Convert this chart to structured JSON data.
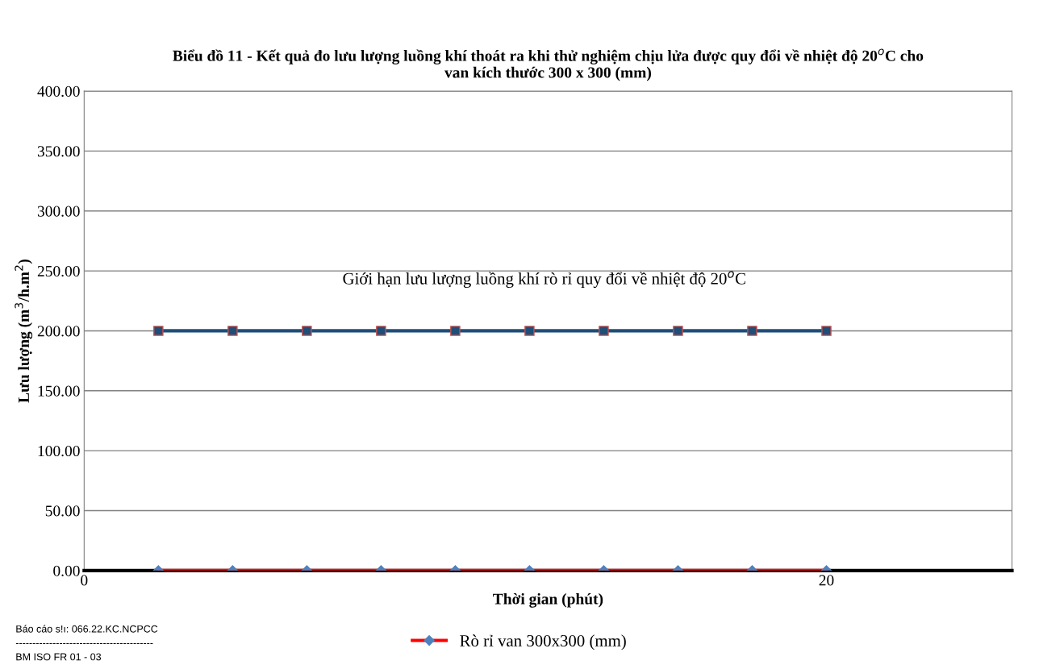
{
  "chart_data": {
    "type": "line",
    "title": "Biểu đồ 11 - Kết quả đo lưu lượng luồng khí thoát ra khi thử nghiệm chịu lửa được quy đổi về nhiệt độ 20$^{o}$C cho\nvan kích thước 300 x 300 (mm)",
    "xlabel": "Thời gian (phút)",
    "ylabel": "Lưu lượng (m$^{3}$/h.m$^{2}$)",
    "x": [
      2,
      4,
      6,
      8,
      10,
      12,
      14,
      16,
      18,
      20
    ],
    "series": [
      {
        "name": "Rò rỉ van 300x300 (mm)",
        "color": "#ff0000",
        "marker": "diamond",
        "values": [
          0,
          0,
          0,
          0,
          0,
          0,
          0,
          0,
          0,
          0
        ]
      },
      {
        "color": "#1f4e79",
        "marker": "square",
        "values": [
          200,
          200,
          200,
          200,
          200,
          200,
          200,
          200,
          200,
          200
        ]
      }
    ],
    "xlim": [
      0,
      25
    ],
    "xticks": [
      0,
      20
    ],
    "ylim": [
      0,
      400
    ],
    "yticks": [
      {
        "value": 0,
        "label": "0.00"
      },
      {
        "value": 50,
        "label": "50.00"
      },
      {
        "value": 100,
        "label": "100.00"
      },
      {
        "value": 150,
        "label": "150.00"
      },
      {
        "value": 200,
        "label": "200.00"
      },
      {
        "value": 250,
        "label": "250.00"
      },
      {
        "value": 300,
        "label": "300.00"
      },
      {
        "value": 350,
        "label": "350.00"
      },
      {
        "value": 400,
        "label": "400.00"
      }
    ],
    "grid": "y",
    "legend": "bottom",
    "annotations": [
      "Giới hạn lưu lượng luồng khí rò rỉ quy đổi về nhiệt độ 20$^{o}$C",
      "Báo cáo s!ı: 066.22.KC.NCPCC",
      "-----------------------------------------",
      "BM ISO FR 01 - 03"
    ]
  }
}
